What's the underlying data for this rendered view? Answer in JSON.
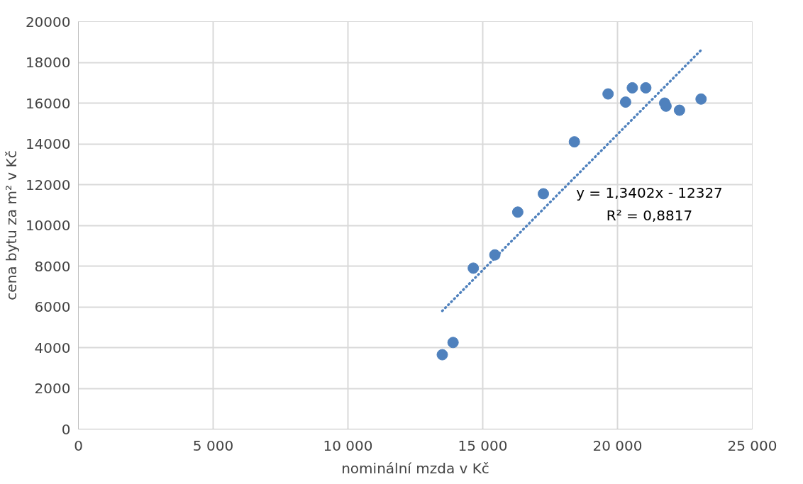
{
  "chart_data": {
    "type": "scatter",
    "xlabel": "nominální mzda v Kč",
    "ylabel": "cena bytu za m² v Kč",
    "xlim": [
      0,
      25000
    ],
    "ylim": [
      0,
      20000
    ],
    "xticks": [
      0,
      {
        "value": 5000,
        "label": "5 000"
      },
      {
        "value": 10000,
        "label": "10 000"
      },
      {
        "value": 15000,
        "label": "15 000"
      },
      {
        "value": 20000,
        "label": "20 000"
      },
      {
        "value": 25000,
        "label": "25 000"
      }
    ],
    "yticks": [
      0,
      2000,
      4000,
      6000,
      8000,
      10000,
      12000,
      14000,
      16000,
      18000,
      20000
    ],
    "grid": true,
    "series": [
      {
        "marker": "circle",
        "color": "#4f81bd",
        "x": [
          13500,
          13900,
          14650,
          15450,
          16300,
          17250,
          18400,
          19650,
          20300,
          20550,
          21050,
          21750,
          21800,
          22300,
          23100
        ],
        "values": [
          3650,
          4250,
          7900,
          8550,
          10650,
          11550,
          14100,
          16450,
          16050,
          16750,
          16750,
          16000,
          15850,
          15650,
          16200
        ]
      },
      {
        "type": "line",
        "color": "#4f81bd",
        "line_style": "dotted",
        "x": [
          13500,
          23100
        ],
        "values": [
          5800,
          18600
        ]
      }
    ],
    "annotations": [
      "y = 1,3402x - 12327",
      "R² = 0,8817"
    ]
  }
}
